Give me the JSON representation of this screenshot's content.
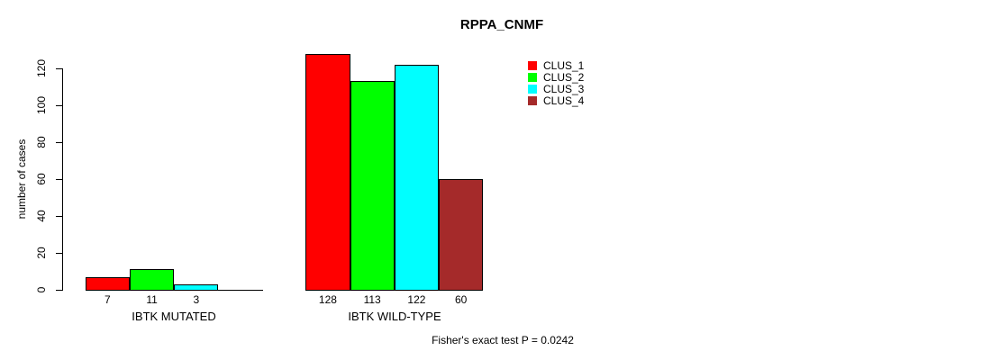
{
  "chart_data": {
    "type": "bar",
    "title": "RPPA_CNMF",
    "ylabel": "number of cases",
    "xlabel": "",
    "categories": [
      "IBTK MUTATED",
      "IBTK WILD-TYPE"
    ],
    "series": [
      {
        "name": "CLUS_1",
        "color": "#ff0000",
        "values": [
          7,
          128
        ]
      },
      {
        "name": "CLUS_2",
        "color": "#00ff00",
        "values": [
          11,
          113
        ]
      },
      {
        "name": "CLUS_3",
        "color": "#00ffff",
        "values": [
          3,
          122
        ]
      },
      {
        "name": "CLUS_4",
        "color": "#a52a2a",
        "values": [
          0,
          60
        ]
      }
    ],
    "yticks": [
      0,
      20,
      40,
      60,
      80,
      100,
      120
    ],
    "ylim": [
      0,
      130
    ],
    "grid": false,
    "legend_position": "top-right",
    "bar_value_labels_shown": true,
    "annotation": "Fisher's exact test P = 0.0242",
    "axis_color": "#000000",
    "bar_border_color": "#000000"
  }
}
